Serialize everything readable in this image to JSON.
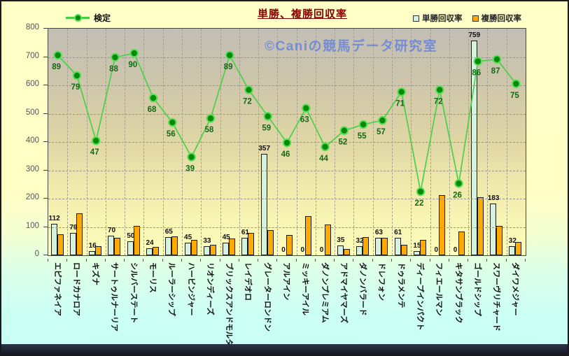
{
  "header": {
    "title": "単勝、複勝回収率"
  },
  "legend": {
    "line": "検定",
    "win": "単勝回収率",
    "place": "複勝回収率"
  },
  "watermark": {
    "text": "©Caniの競馬データ研究室"
  },
  "colors": {
    "win_bar": "#d6f2de",
    "place_bar": "#ffaa00",
    "line": "#4ad04a",
    "marker": "#098909",
    "marker_ring": "#52e052",
    "line_label": "#156815",
    "title": "#8b0000",
    "watermark": "#4a6ee6"
  },
  "chart_data": {
    "type": "combo: grouped bar + line",
    "title": "単勝、複勝回収率",
    "xlabel": "",
    "ylabel": "",
    "ylim": [
      0,
      800
    ],
    "yticks": [
      0,
      100,
      200,
      300,
      400,
      500,
      600,
      700,
      800
    ],
    "grid": true,
    "legend_position": "top",
    "categories": [
      "エピファネイア",
      "ロードカナロア",
      "キズナ",
      "サートゥルナーリア",
      "シルバーステート",
      "モーリス",
      "ルーラーシップ",
      "ハービンジャー",
      "リオンディーズ",
      "ブリックスアンドモルタル",
      "レイデオロ",
      "グレーターロンドン",
      "アルアイン",
      "ミッキーアイル",
      "ダノンプレミアム",
      "アドマイヤマーズ",
      "ダノンバラード",
      "ドレフォン",
      "ドゥラメンテ",
      "ディープインパクト",
      "フィエールマン",
      "キタサンブラック",
      "ゴールドシップ",
      "スワーヴリチャード",
      "ダイワメジャー"
    ],
    "series": [
      {
        "name": "単勝回収率",
        "type": "bar",
        "color": "#d6f2de",
        "axis": "left 0-800",
        "data_labels": true,
        "values": [
          112,
          79,
          16,
          70,
          50,
          24,
          65,
          45,
          33,
          45,
          61,
          357,
          0,
          0,
          0,
          35,
          32,
          63,
          61,
          15,
          0,
          0,
          759,
          183,
          32
        ]
      },
      {
        "name": "複勝回収率",
        "type": "bar",
        "color": "#ffaa00",
        "axis": "left 0-800",
        "data_labels": false,
        "values": [
          75,
          148,
          31,
          61,
          103,
          30,
          66,
          55,
          38,
          60,
          78,
          90,
          72,
          138,
          108,
          22,
          65,
          63,
          36,
          54,
          213,
          85,
          204,
          104,
          48
        ]
      },
      {
        "name": "検定",
        "type": "line",
        "color": "#4ad04a",
        "axis": "hidden secondary ~0-100",
        "data_labels": true,
        "values": [
          89,
          79,
          47,
          88,
          90,
          68,
          56,
          39,
          58,
          89,
          72,
          59,
          46,
          63,
          44,
          52,
          55,
          57,
          71,
          22,
          72,
          26,
          86,
          87,
          75
        ]
      }
    ]
  }
}
